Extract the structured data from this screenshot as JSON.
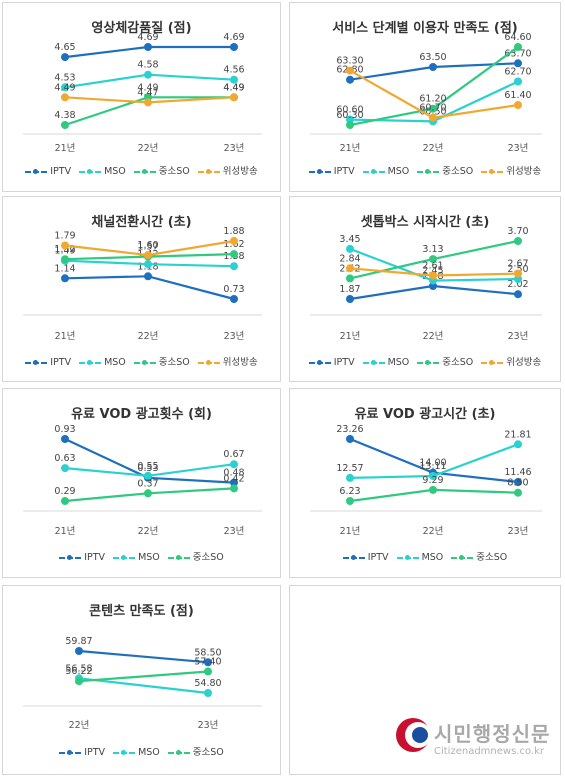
{
  "colors": {
    "IPTV": "#1f6fbf",
    "MSO": "#2ad1d1",
    "중소SO": "#2fc980",
    "위성방송": "#f0a830"
  },
  "watermark": {
    "title": "시민행정신문",
    "url": "Citizenadmnews.co.kr"
  },
  "chart_data": [
    {
      "type": "line",
      "title": "영상체감품질 (점)",
      "categories": [
        "21년",
        "22년",
        "23년"
      ],
      "series": [
        {
          "name": "IPTV",
          "values": [
            4.65,
            4.69,
            4.69
          ]
        },
        {
          "name": "MSO",
          "values": [
            4.53,
            4.58,
            4.56
          ]
        },
        {
          "name": "중소SO",
          "values": [
            4.38,
            4.49,
            4.49
          ]
        },
        {
          "name": "위성방송",
          "values": [
            4.49,
            4.47,
            4.49
          ]
        }
      ]
    },
    {
      "type": "line",
      "title": "서비스 단계별 이용자 만족도 (점)",
      "categories": [
        "21년",
        "22년",
        "23년"
      ],
      "series": [
        {
          "name": "IPTV",
          "values": [
            62.8,
            63.5,
            63.7
          ]
        },
        {
          "name": "MSO",
          "values": [
            60.6,
            60.5,
            62.7
          ]
        },
        {
          "name": "중소SO",
          "values": [
            60.3,
            61.2,
            64.6
          ]
        },
        {
          "name": "위성방송",
          "values": [
            63.3,
            60.7,
            61.4
          ]
        }
      ]
    },
    {
      "type": "line",
      "title": "채널전환시간 (초)",
      "categories": [
        "21년",
        "22년",
        "23년"
      ],
      "series": [
        {
          "name": "IPTV",
          "values": [
            1.14,
            1.18,
            0.73
          ]
        },
        {
          "name": "MSO",
          "values": [
            1.49,
            1.42,
            1.38
          ]
        },
        {
          "name": "중소SO",
          "values": [
            1.52,
            1.57,
            1.62
          ]
        },
        {
          "name": "위성방송",
          "values": [
            1.79,
            1.6,
            1.88
          ]
        }
      ]
    },
    {
      "type": "line",
      "title": "셋톱박스 시작시간 (초)",
      "categories": [
        "21년",
        "22년",
        "23년"
      ],
      "series": [
        {
          "name": "IPTV",
          "values": [
            1.87,
            2.28,
            2.02
          ]
        },
        {
          "name": "MSO",
          "values": [
            3.45,
            2.45,
            2.5
          ]
        },
        {
          "name": "중소SO",
          "values": [
            2.52,
            3.13,
            3.7
          ]
        },
        {
          "name": "위성방송",
          "values": [
            2.84,
            2.61,
            2.67
          ]
        }
      ]
    },
    {
      "type": "line",
      "title": "유료 VOD 광고횟수 (회)",
      "categories": [
        "21년",
        "22년",
        "23년"
      ],
      "series": [
        {
          "name": "IPTV",
          "values": [
            0.93,
            0.53,
            0.48
          ]
        },
        {
          "name": "MSO",
          "values": [
            0.63,
            0.55,
            0.67
          ]
        },
        {
          "name": "중소SO",
          "values": [
            0.29,
            0.37,
            0.42
          ]
        }
      ]
    },
    {
      "type": "line",
      "title": "유료 VOD 광고시간 (초)",
      "categories": [
        "21년",
        "22년",
        "23년"
      ],
      "series": [
        {
          "name": "IPTV",
          "values": [
            23.26,
            14.0,
            11.46
          ]
        },
        {
          "name": "MSO",
          "values": [
            12.57,
            13.11,
            21.81
          ]
        },
        {
          "name": "중소SO",
          "values": [
            6.23,
            9.29,
            8.5
          ]
        }
      ]
    },
    {
      "type": "line",
      "title": "콘텐츠 만족도 (점)",
      "categories": [
        "22년",
        "23년"
      ],
      "series": [
        {
          "name": "IPTV",
          "values": [
            59.87,
            58.5
          ]
        },
        {
          "name": "MSO",
          "values": [
            56.58,
            54.8
          ]
        },
        {
          "name": "중소SO",
          "values": [
            56.22,
            57.4
          ]
        }
      ]
    }
  ]
}
